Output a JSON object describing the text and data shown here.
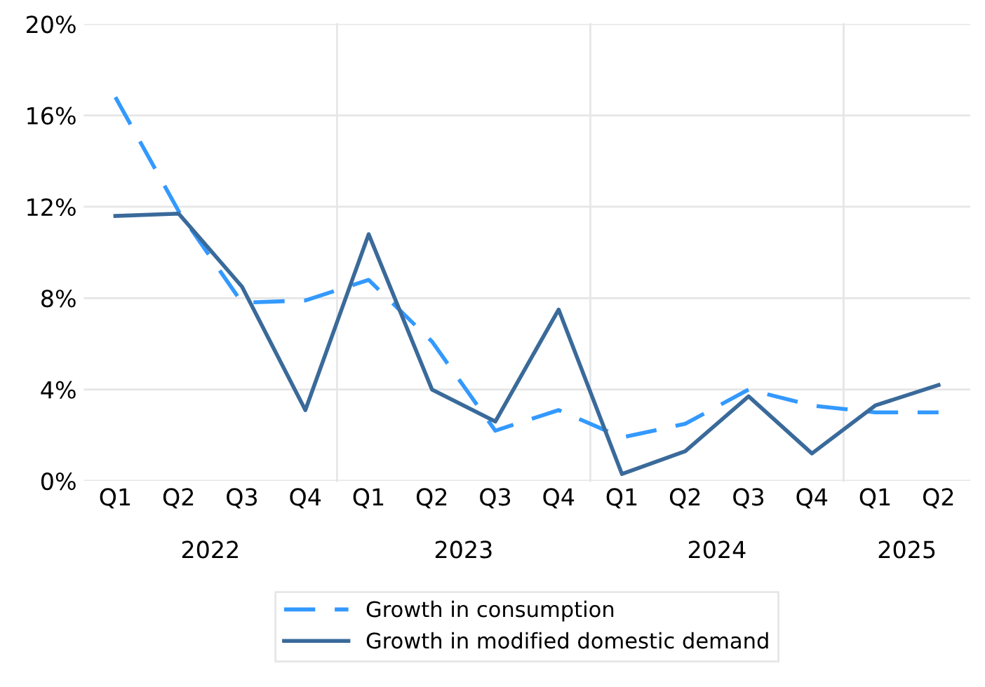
{
  "chart_data": {
    "type": "line",
    "categories": [
      "Q1",
      "Q2",
      "Q3",
      "Q4",
      "Q1",
      "Q2",
      "Q3",
      "Q4",
      "Q1",
      "Q2",
      "Q3",
      "Q4",
      "Q1",
      "Q2"
    ],
    "annotations": [
      "2022",
      "2023",
      "2024",
      "2025"
    ],
    "series": [
      {
        "name": "Growth in consumption",
        "color": "#3399ff",
        "line_style": "dashed",
        "values": [
          16.8,
          11.8,
          7.8,
          7.9,
          8.8,
          6.1,
          2.2,
          3.1,
          1.9,
          2.5,
          4.0,
          3.3,
          3.0,
          3.0
        ]
      },
      {
        "name": "Growth in modified domestic demand",
        "color": "#3a6a9a",
        "line_style": "solid",
        "values": [
          11.6,
          11.7,
          8.5,
          3.1,
          10.8,
          4.0,
          2.6,
          7.5,
          0.3,
          1.3,
          3.7,
          1.2,
          3.3,
          4.2
        ]
      }
    ],
    "ylim": [
      0,
      20
    ],
    "yticks": [
      {
        "value": 0,
        "label": "0%"
      },
      {
        "value": 4,
        "label": "4%"
      },
      {
        "value": 8,
        "label": "8%"
      },
      {
        "value": 12,
        "label": "12%"
      },
      {
        "value": 16,
        "label": "16%"
      },
      {
        "value": 20,
        "label": "20%"
      }
    ],
    "grid": "y",
    "legend": "bottom",
    "marker": "none"
  }
}
